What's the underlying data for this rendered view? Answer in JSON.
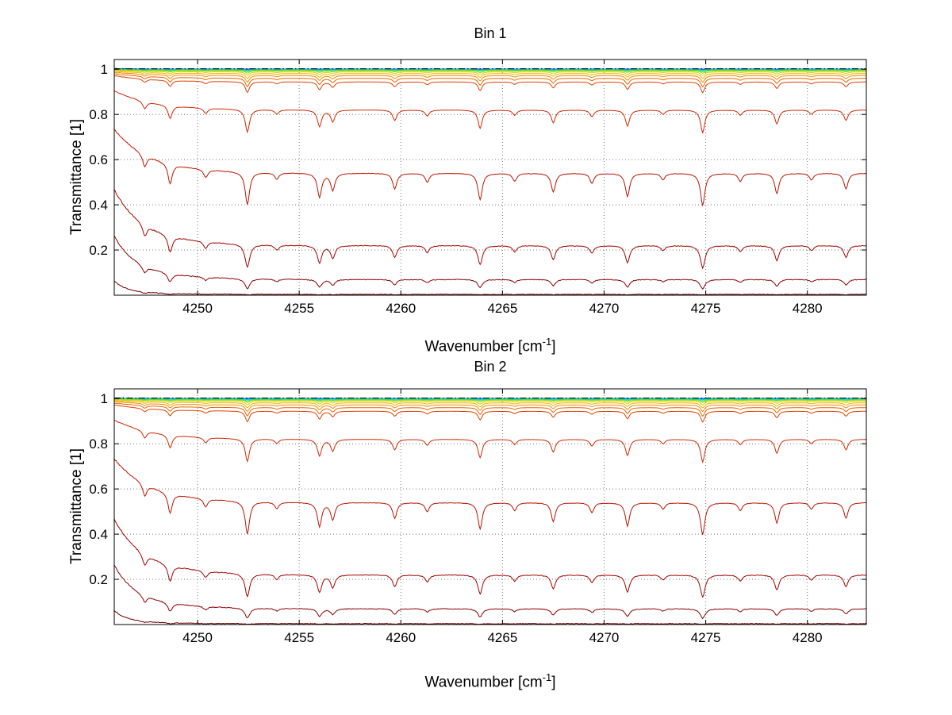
{
  "figure": {
    "background": "#ffffff"
  },
  "chart_data": [
    {
      "type": "line",
      "title": "Bin 1",
      "xlabel": {
        "text": "Wavenumber [cm",
        "sup": "-1",
        "close": "]"
      },
      "ylabel": "Transmittance [1]",
      "xlim": [
        4245.9,
        4282.9
      ],
      "ylim": [
        0,
        1.043
      ],
      "xticks": [
        4250,
        4255,
        4260,
        4265,
        4270,
        4275,
        4280
      ],
      "yticks": [
        0.2,
        0.4,
        0.6,
        0.8,
        1
      ],
      "grid": "dotted",
      "box": true,
      "legend": "none",
      "line_hwhm": 0.12,
      "line_depth_gain": 0.44,
      "continuum": {
        "left_lift": 0.5,
        "decay_cm": 2.0
      },
      "noise_decay_cm": 1.8,
      "reference_line": {
        "y": 1.002,
        "color": "#000000",
        "style": "dash-dot"
      },
      "absorption_lines": [
        {
          "x": 4247.4,
          "s": 0.3
        },
        {
          "x": 4248.65,
          "s": 0.55
        },
        {
          "x": 4250.4,
          "s": 0.22
        },
        {
          "x": 4252.45,
          "s": 1.0
        },
        {
          "x": 4253.9,
          "s": 0.18
        },
        {
          "x": 4256.0,
          "s": 0.72
        },
        {
          "x": 4256.65,
          "s": 0.5
        },
        {
          "x": 4259.7,
          "s": 0.45
        },
        {
          "x": 4261.3,
          "s": 0.25
        },
        {
          "x": 4263.9,
          "s": 0.8
        },
        {
          "x": 4265.6,
          "s": 0.22
        },
        {
          "x": 4267.5,
          "s": 0.55
        },
        {
          "x": 4269.4,
          "s": 0.28
        },
        {
          "x": 4271.15,
          "s": 0.7
        },
        {
          "x": 4272.9,
          "s": 0.18
        },
        {
          "x": 4274.85,
          "s": 1.0
        },
        {
          "x": 4276.7,
          "s": 0.22
        },
        {
          "x": 4278.5,
          "s": 0.6
        },
        {
          "x": 4280.2,
          "s": 0.18
        },
        {
          "x": 4281.9,
          "s": 0.45
        }
      ],
      "series": [
        {
          "color": "#000090",
          "flat_T": 1.0,
          "noise": 0.002
        },
        {
          "color": "#0000F0",
          "flat_T": 1.0,
          "noise": 0.006
        },
        {
          "color": "#0060FF",
          "flat_T": 0.9995,
          "noise": 0.004
        },
        {
          "color": "#00B4FF",
          "flat_T": 0.999,
          "noise": 0.0025
        },
        {
          "color": "#00E4D0",
          "flat_T": 0.998,
          "noise": 0.0018
        },
        {
          "color": "#38D848",
          "flat_T": 0.996,
          "noise": 0.0012
        },
        {
          "color": "#98D800",
          "flat_T": 0.993,
          "noise": 0.001
        },
        {
          "color": "#D8D000",
          "flat_T": 0.988,
          "noise": 0.001
        },
        {
          "color": "#F0B400",
          "flat_T": 0.981,
          "noise": 0.001
        },
        {
          "color": "#F08C00",
          "flat_T": 0.972,
          "noise": 0.001
        },
        {
          "color": "#E86400",
          "flat_T": 0.96,
          "noise": 0.001
        },
        {
          "color": "#E04000",
          "flat_T": 0.944,
          "noise": 0.001
        },
        {
          "color": "#D02800",
          "flat_T": 0.82,
          "noise": 0.0012
        },
        {
          "color": "#B81400",
          "flat_T": 0.54,
          "noise": 0.0015
        },
        {
          "color": "#A00400",
          "flat_T": 0.22,
          "noise": 0.0015
        },
        {
          "color": "#880000",
          "flat_T": 0.07,
          "noise": 0.001
        },
        {
          "color": "#700000",
          "flat_T": 0.004,
          "noise": 0.0005
        }
      ]
    },
    {
      "type": "line",
      "title": "Bin 2",
      "xlabel": {
        "text": "Wavenumber [cm",
        "sup": "-1",
        "close": "]"
      },
      "ylabel": "Transmittance [1]",
      "xlim": [
        4245.9,
        4282.9
      ],
      "ylim": [
        0,
        1.043
      ],
      "xticks": [
        4250,
        4255,
        4260,
        4265,
        4270,
        4275,
        4280
      ],
      "yticks": [
        0.2,
        0.4,
        0.6,
        0.8,
        1
      ],
      "grid": "dotted",
      "box": true,
      "legend": "none",
      "line_hwhm": 0.12,
      "line_depth_gain": 0.44,
      "continuum": {
        "left_lift": 0.5,
        "decay_cm": 2.0
      },
      "noise_decay_cm": 1.8,
      "reference_line": {
        "y": 1.002,
        "color": "#000000",
        "style": "dash-dot"
      },
      "absorption_lines": [
        {
          "x": 4247.4,
          "s": 0.3
        },
        {
          "x": 4248.65,
          "s": 0.55
        },
        {
          "x": 4250.4,
          "s": 0.22
        },
        {
          "x": 4252.45,
          "s": 1.0
        },
        {
          "x": 4253.9,
          "s": 0.18
        },
        {
          "x": 4256.0,
          "s": 0.72
        },
        {
          "x": 4256.65,
          "s": 0.5
        },
        {
          "x": 4259.7,
          "s": 0.45
        },
        {
          "x": 4261.3,
          "s": 0.25
        },
        {
          "x": 4263.9,
          "s": 0.8
        },
        {
          "x": 4265.6,
          "s": 0.22
        },
        {
          "x": 4267.5,
          "s": 0.55
        },
        {
          "x": 4269.4,
          "s": 0.28
        },
        {
          "x": 4271.15,
          "s": 0.7
        },
        {
          "x": 4272.9,
          "s": 0.18
        },
        {
          "x": 4274.85,
          "s": 1.0
        },
        {
          "x": 4276.7,
          "s": 0.22
        },
        {
          "x": 4278.5,
          "s": 0.6
        },
        {
          "x": 4280.2,
          "s": 0.18
        },
        {
          "x": 4281.9,
          "s": 0.45
        }
      ],
      "series": [
        {
          "color": "#000090",
          "flat_T": 1.0,
          "noise": 0.002
        },
        {
          "color": "#0000F0",
          "flat_T": 1.0,
          "noise": 0.006
        },
        {
          "color": "#0060FF",
          "flat_T": 0.9995,
          "noise": 0.004
        },
        {
          "color": "#00B4FF",
          "flat_T": 0.999,
          "noise": 0.0025
        },
        {
          "color": "#00E4D0",
          "flat_T": 0.998,
          "noise": 0.0018
        },
        {
          "color": "#38D848",
          "flat_T": 0.996,
          "noise": 0.0012
        },
        {
          "color": "#98D800",
          "flat_T": 0.993,
          "noise": 0.001
        },
        {
          "color": "#D8D000",
          "flat_T": 0.988,
          "noise": 0.001
        },
        {
          "color": "#F0B400",
          "flat_T": 0.981,
          "noise": 0.001
        },
        {
          "color": "#F08C00",
          "flat_T": 0.972,
          "noise": 0.001
        },
        {
          "color": "#E86400",
          "flat_T": 0.96,
          "noise": 0.001
        },
        {
          "color": "#E04000",
          "flat_T": 0.944,
          "noise": 0.001
        },
        {
          "color": "#D02800",
          "flat_T": 0.82,
          "noise": 0.0012
        },
        {
          "color": "#B81400",
          "flat_T": 0.54,
          "noise": 0.0015
        },
        {
          "color": "#A00400",
          "flat_T": 0.22,
          "noise": 0.0015
        },
        {
          "color": "#880000",
          "flat_T": 0.07,
          "noise": 0.001
        },
        {
          "color": "#700000",
          "flat_T": 0.004,
          "noise": 0.0005
        }
      ]
    }
  ]
}
